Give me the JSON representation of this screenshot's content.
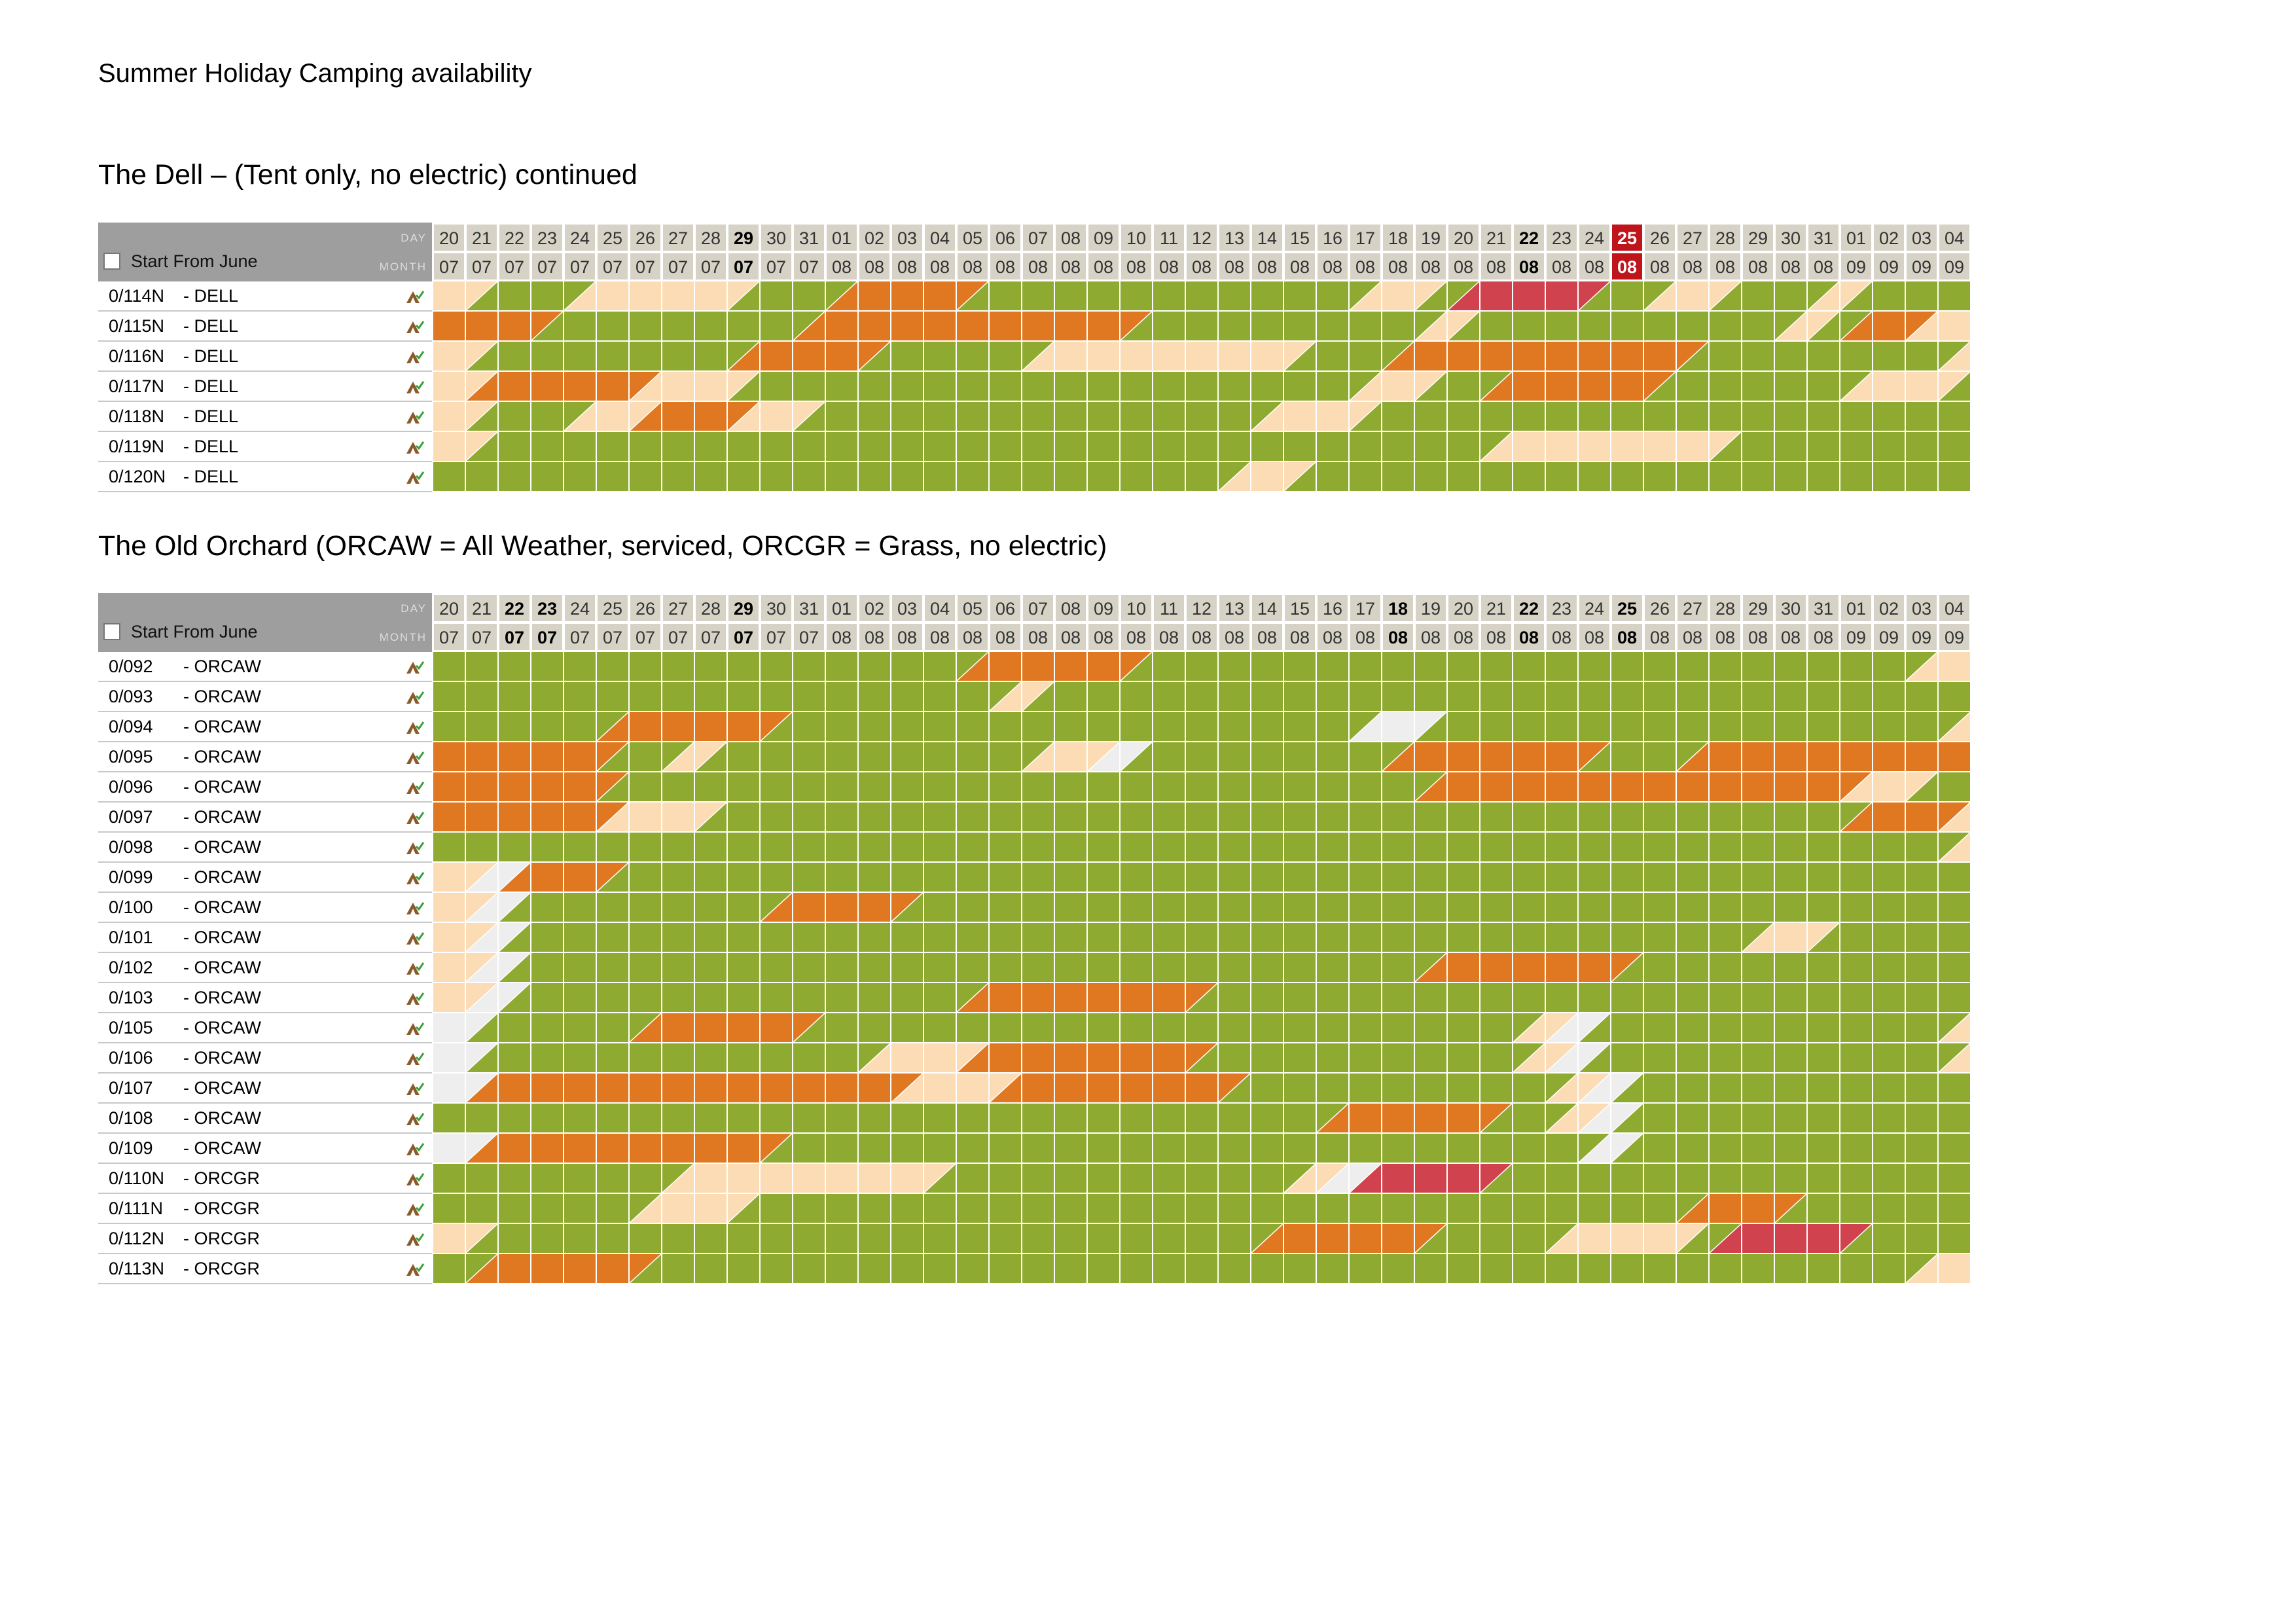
{
  "title": "Summer Holiday Camping availability",
  "colors": {
    "available": "#8faa31",
    "booked": "#e07822",
    "unavailable": "#fbdcb4",
    "blocked": "#d0424e",
    "closed": "#eeeeee",
    "today": "#c0141b"
  },
  "days": [
    "20",
    "21",
    "22",
    "23",
    "24",
    "25",
    "26",
    "27",
    "28",
    "29",
    "30",
    "31",
    "01",
    "02",
    "03",
    "04",
    "05",
    "06",
    "07",
    "08",
    "09",
    "10",
    "11",
    "12",
    "13",
    "14",
    "15",
    "16",
    "17",
    "18",
    "19",
    "20",
    "21",
    "22",
    "23",
    "24",
    "25",
    "26",
    "27",
    "28",
    "29",
    "30",
    "31",
    "01",
    "02",
    "03",
    "04"
  ],
  "months": [
    "07",
    "07",
    "07",
    "07",
    "07",
    "07",
    "07",
    "07",
    "07",
    "07",
    "07",
    "07",
    "08",
    "08",
    "08",
    "08",
    "08",
    "08",
    "08",
    "08",
    "08",
    "08",
    "08",
    "08",
    "08",
    "08",
    "08",
    "08",
    "08",
    "08",
    "08",
    "08",
    "08",
    "08",
    "08",
    "08",
    "08",
    "08",
    "08",
    "08",
    "08",
    "08",
    "08",
    "09",
    "09",
    "09",
    "09"
  ],
  "sections": [
    {
      "title": "The Dell – (Tent only, no electric) continued",
      "header": {
        "day_label": "DAY",
        "month_label": "MONTH",
        "start_label": "Start From June"
      },
      "bold_days": [
        9,
        33
      ],
      "today_index": 36,
      "rows": [
        {
          "pitch": "0/114N",
          "type": "- DELL",
          "cells": "pgggpppppgggooooggggggggggggppgrrrrggppgggpggggppppp"
        },
        {
          "pitch": "0/115N",
          "type": "- DELL",
          "cells": "oooggggggggoooooooooogggggggggpggggggggggpgooppppp"
        },
        {
          "pitch": "0/116N",
          "type": "- DELL",
          "cells": "pggggggggoooogggggppppppppgggoooooooooggggggggppgoopppp"
        },
        {
          "pitch": "0/117N",
          "type": "- DELL",
          "cells": "pooooopppgggggggggggggggggggppggoooooggggggpppgoopppp"
        },
        {
          "pitch": "0/118N",
          "type": "- DELL",
          "cells": "pgggppoooppggggggggggggggpppgggggggggggggggggggggpppp"
        },
        {
          "pitch": "0/119N",
          "type": "- DELL",
          "cells": "pgggggggggggggggggggggggggggggggpppppppgggggggggppppp"
        },
        {
          "pitch": "0/120N",
          "type": "- DELL",
          "cells": "ggggggggggggggggggggggggppgggggggggggggggggggggpppp"
        }
      ]
    },
    {
      "title": "The Old Orchard (ORCAW = All Weather, serviced, ORCGR = Grass, no electric)",
      "header": {
        "day_label": "DAY",
        "month_label": "MONTH",
        "start_label": "Start From June"
      },
      "bold_days": [
        2,
        3,
        9,
        29,
        33,
        36
      ],
      "today_index": -1,
      "rows": [
        {
          "pitch": "0/092",
          "type": "- ORCAW",
          "cells": "ggggggggggggggggoooooggggggggggggggggggggggggppppp"
        },
        {
          "pitch": "0/093",
          "type": "- ORCAW",
          "cells": "gggggggggggggggggpgggggggggggggggggggggggggggggpppp"
        },
        {
          "pitch": "0/094",
          "type": "- ORCAW",
          "cells": "gggggoooooggggggggggggggggggwwggggggggggggggggppppp"
        },
        {
          "pitch": "0/095",
          "type": "- ORCAW",
          "cells": "oooooggpggggggggggppwggggggggoooooogggoooooooooooppp"
        },
        {
          "pitch": "0/096",
          "type": "- ORCAW",
          "cells": "ooooogggggggggggggggggggggggggoooooooooooooppggggpppp"
        },
        {
          "pitch": "0/097",
          "type": "- ORCAW",
          "cells": "ooooopppgggggggggggggggggggggggggggggggggggoooppppp"
        },
        {
          "pitch": "0/098",
          "type": "- ORCAW",
          "cells": "ggggggggggggggggggggggggggggggggggggggggggggggppppp"
        },
        {
          "pitch": "0/099",
          "type": "- ORCAW",
          "cells": "pwoooggggggggggggggggggggggggggggggggggggggggggppppp"
        },
        {
          "pitch": "0/100",
          "type": "- ORCAW",
          "cells": "pwggggggggoooogggggggggggggggggggggggggggggggggppppp"
        },
        {
          "pitch": "0/101",
          "type": "- ORCAW",
          "cells": "pwggggggggggggggggggggggggggggggggggggggppggggggppppp"
        },
        {
          "pitch": "0/102",
          "type": "- ORCAW",
          "cells": "pwggggggggggggggggggggggggggggooooooggggggggggggppppp"
        },
        {
          "pitch": "0/103",
          "type": "- ORCAW",
          "cells": "pwggggggggggggggoooooooggggggggggggggggggggggggppppp"
        },
        {
          "pitch": "0/105",
          "type": "- ORCAW",
          "cells": "wgggggoooooggggggggggggggggggggggpwgggggggggggppppp"
        },
        {
          "pitch": "0/106",
          "type": "- ORCAW",
          "cells": "wggggggggggggpppoooooooggggggggggpwgggggggggggppppp"
        },
        {
          "pitch": "0/107",
          "type": "- ORCAW",
          "cells": "wooooooooooooopppoooooooggggggggggpwgggggggggggppppp"
        },
        {
          "pitch": "0/108",
          "type": "- ORCAW",
          "cells": "gggggggggggggggggggggggggggoooooggpwgggggggggggppppp"
        },
        {
          "pitch": "0/109",
          "type": "- ORCAW",
          "cells": "wooooooooogggggggggggggggggggggggggwgggggggggggppppp"
        },
        {
          "pitch": "0/110N",
          "type": "- ORCGR",
          "cells": "gggggggppppppppgggggggggggpwrrrrgggggggggggggggppwww"
        },
        {
          "pitch": "0/111N",
          "type": "- ORCGR",
          "cells": "ggggggpppgggggggggggggggggggggggggggggoooggggggppppp"
        },
        {
          "pitch": "0/112N",
          "type": "- ORCGR",
          "cells": "pggggggggggggggggggggggggoooooggggppppgrrrrggggggpppp"
        },
        {
          "pitch": "0/113N",
          "type": "- ORCGR",
          "cells": "gooooogggggggggggggggggggggggggggggggggggggggppppp"
        }
      ]
    }
  ]
}
